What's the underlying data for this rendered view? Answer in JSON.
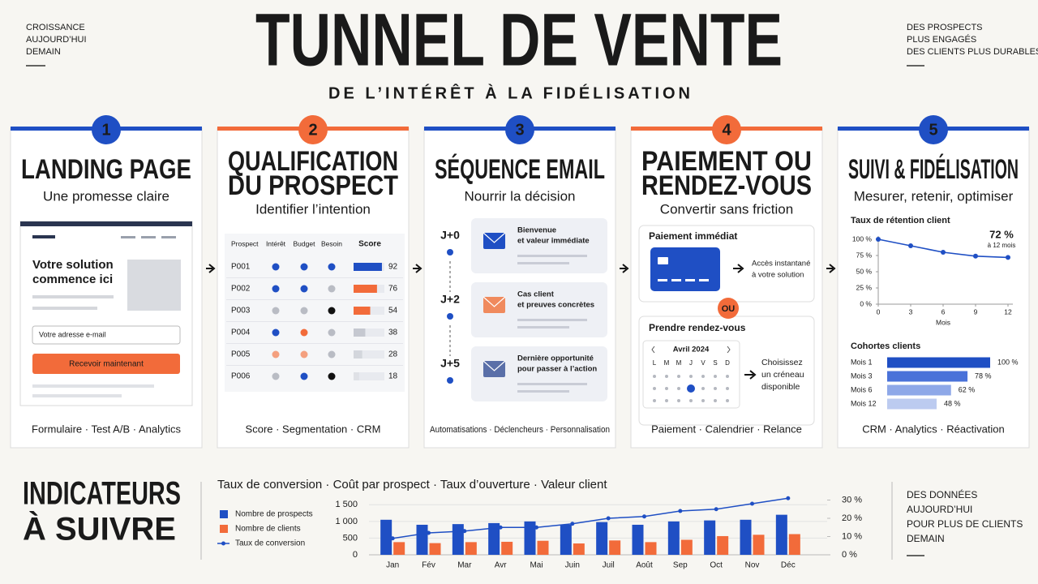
{
  "header": {
    "title": "TUNNEL DE VENTE",
    "subtitle": "DE L’INTÉRÊT À LA FIDÉLISATION",
    "left_note": [
      "CROISSANCE",
      "AUJOURD’HUI",
      "DEMAIN"
    ],
    "right_note": [
      "DES PROSPECTS",
      "PLUS ENGAGÉS",
      "DES CLIENTS PLUS DURABLES"
    ]
  },
  "steps": [
    {
      "number": "1",
      "color": "#1f4fc4",
      "title": [
        "LANDING PAGE"
      ],
      "subtitle": "Une promesse claire",
      "footer": "Formulaire · Test A/B · Analytics",
      "mock": {
        "headline": [
          "Votre solution",
          "commence ici"
        ],
        "input": "Votre adresse e-mail",
        "button": "Recevoir maintenant"
      }
    },
    {
      "number": "2",
      "color": "#f26b3a",
      "title": [
        "QUALIFICATION",
        "DU PROSPECT"
      ],
      "subtitle": "Identifier l’intention",
      "footer": "Score · Segmentation · CRM",
      "table": {
        "columns": [
          "Prospect",
          "Intérêt",
          "Budget",
          "Besoin",
          "Score"
        ],
        "rows": [
          {
            "prospect": "P001",
            "dots": [
              "#1f4fc4",
              "#1f4fc4",
              "#1f4fc4"
            ],
            "score": 92,
            "color": "#1f4fc4"
          },
          {
            "prospect": "P002",
            "dots": [
              "#1f4fc4",
              "#1f4fc4",
              "#b9bcc4"
            ],
            "score": 76,
            "color": "#f26b3a"
          },
          {
            "prospect": "P003",
            "dots": [
              "#b9bcc4",
              "#b9bcc4",
              "#111111"
            ],
            "score": 54,
            "color": "#f26b3a"
          },
          {
            "prospect": "P004",
            "dots": [
              "#1f4fc4",
              "#f26b3a",
              "#b9bcc4"
            ],
            "score": 38,
            "color": "#c5c8d0"
          },
          {
            "prospect": "P005",
            "dots": [
              "#f4a07f",
              "#f4a07f",
              "#b9bcc4"
            ],
            "score": 28,
            "color": "#d3d6dc"
          },
          {
            "prospect": "P006",
            "dots": [
              "#b9bcc4",
              "#1f4fc4",
              "#111111"
            ],
            "score": 18,
            "color": "#dfe1e6"
          }
        ]
      }
    },
    {
      "number": "3",
      "color": "#1f4fc4",
      "title": [
        "SÉQUENCE EMAIL"
      ],
      "subtitle": "Nourrir la décision",
      "footer": "Automatisations · Déclencheurs · Personnalisation",
      "emails": [
        {
          "day": "J+0",
          "lines": [
            "Bienvenue",
            "et valeur immédiate"
          ],
          "color": "#1f4fc4"
        },
        {
          "day": "J+2",
          "lines": [
            "Cas client",
            "et preuves concrètes"
          ],
          "color": "#f08a5d"
        },
        {
          "day": "J+5",
          "lines": [
            "Dernière opportunité",
            "pour passer à l’action"
          ],
          "color": "#5a6fa8"
        }
      ]
    },
    {
      "number": "4",
      "color": "#f26b3a",
      "title": [
        "PAIEMENT OU",
        "RENDEZ-VOUS"
      ],
      "subtitle": "Convertir sans friction",
      "footer": "Paiement · Calendrier · Relance",
      "payment": {
        "title": "Paiement immédiat",
        "note": [
          "Accès instantané",
          "à votre solution"
        ]
      },
      "or": "OU",
      "booking": {
        "title": "Prendre rendez-vous",
        "month": "Avril 2024",
        "weekdays": [
          "L",
          "M",
          "M",
          "J",
          "V",
          "S",
          "D"
        ],
        "note": [
          "Choisissez",
          "un créneau",
          "disponible"
        ]
      }
    },
    {
      "number": "5",
      "color": "#1f4fc4",
      "title": [
        "SUIVI & FIDÉLISATION"
      ],
      "subtitle": "Mesurer, retenir, optimiser",
      "footer": "CRM · Analytics · Réactivation",
      "retention": {
        "type": "line",
        "title": "Taux de rétention client",
        "x": [
          0,
          3,
          6,
          9,
          12
        ],
        "values": [
          100,
          90,
          80,
          74,
          72
        ],
        "color": "#1f4fc4",
        "xlim": [
          0,
          12
        ],
        "xticks": [
          0,
          3,
          6,
          9,
          12
        ],
        "xlabel": "Mois",
        "ylim": [
          0,
          100
        ],
        "yticks": [
          {
            "value": 0,
            "label": "0 %"
          },
          {
            "value": 25,
            "label": "25 %"
          },
          {
            "value": 50,
            "label": "50 %"
          },
          {
            "value": 75,
            "label": "75 %"
          },
          {
            "value": 100,
            "label": "100 %"
          }
        ],
        "annotation": [
          "72 %",
          "à 12 mois"
        ]
      },
      "cohorts": {
        "type": "bar",
        "title": "Cohortes clients",
        "categories": [
          "Mois 1",
          "Mois 3",
          "Mois 6",
          "Mois 12"
        ],
        "values": [
          100,
          78,
          62,
          48
        ],
        "value_labels": [
          "100 %",
          "78 %",
          "62 %",
          "48 %"
        ],
        "colors": [
          "#1f4fc4",
          "#4a72d9",
          "#8ea8e8",
          "#bccbf0"
        ]
      }
    }
  ],
  "indicators": {
    "title": [
      "INDICATEURS",
      "À SUIVRE"
    ],
    "kpis": "Taux de conversion · Coût par prospect · Taux d’ouverture · Valeur client",
    "chart": {
      "type": "bar-line",
      "categories": [
        "Jan",
        "Fév",
        "Mar",
        "Avr",
        "Mai",
        "Juin",
        "Juil",
        "Août",
        "Sep",
        "Oct",
        "Nov",
        "Déc"
      ],
      "series": [
        {
          "name": "Nombre de prospects",
          "color": "#1f4fc4",
          "values": [
            1050,
            900,
            920,
            950,
            1000,
            900,
            980,
            900,
            1000,
            1030,
            1050,
            1200
          ]
        },
        {
          "name": "Nombre de clients",
          "color": "#f26b3a",
          "values": [
            380,
            350,
            380,
            390,
            420,
            340,
            430,
            380,
            450,
            560,
            600,
            620
          ]
        },
        {
          "name": "Taux de conversion",
          "color": "#1f4fc4",
          "axis": "y2",
          "values": [
            9,
            12,
            13,
            15,
            15,
            17,
            20,
            21,
            24,
            25,
            28,
            31
          ]
        }
      ],
      "ylim": [
        0,
        1750
      ],
      "yticks": [
        0,
        500,
        {
          "value": 1000,
          "label": "1 000"
        },
        {
          "value": 1500,
          "label": "1 500"
        }
      ],
      "y2lim": [
        0,
        32
      ],
      "y2ticks": [
        {
          "value": 0,
          "label": "0 %"
        },
        {
          "value": 10,
          "label": "10 %"
        },
        {
          "value": 20,
          "label": "20 %"
        },
        {
          "value": 30,
          "label": "30 %"
        }
      ]
    },
    "right_note": [
      "DES DONNÉES",
      "AUJOURD’HUI",
      "POUR PLUS DE CLIENTS",
      "DEMAIN"
    ]
  }
}
